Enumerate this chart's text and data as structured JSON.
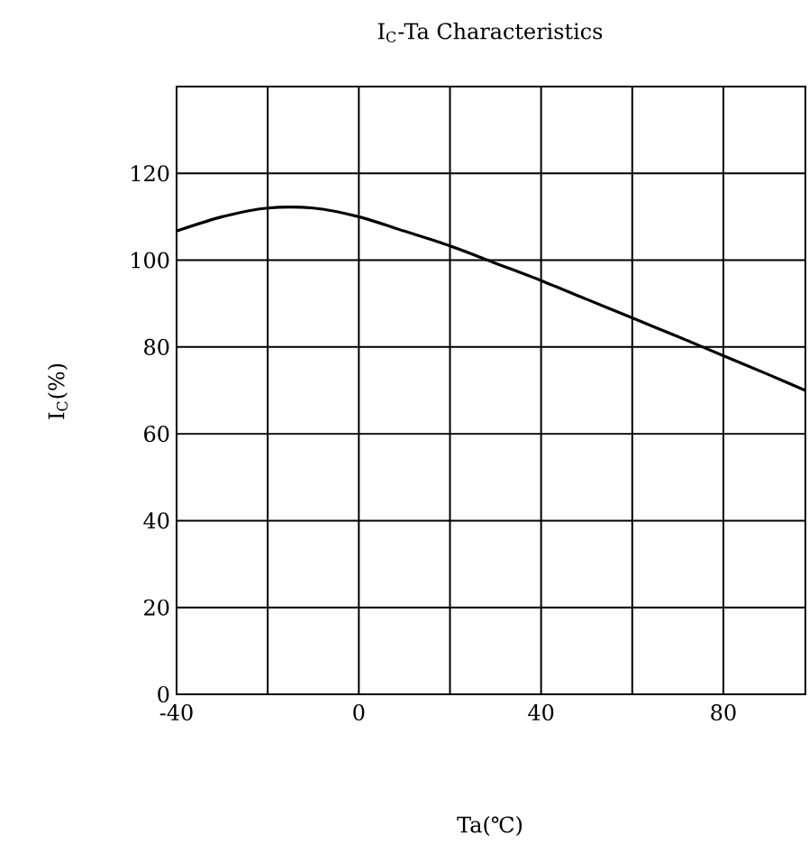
{
  "chart_data": {
    "type": "line",
    "title": "I$_{C}$-Ta Characteristics",
    "xlabel": "Ta(℃)",
    "ylabel": "I$_{C}$(%)",
    "x": [
      -40,
      -30,
      -20,
      -10,
      0,
      10,
      20,
      30,
      40,
      50,
      60,
      70,
      80,
      90,
      98
    ],
    "series": [
      {
        "color": "#000000",
        "values": [
          106.7,
          110,
          112,
          112,
          110,
          106.7,
          103.3,
          99.3,
          95.3,
          91,
          86.7,
          82.4,
          78,
          73.6,
          70
        ]
      }
    ],
    "xlim": [
      -40,
      98
    ],
    "ylim": [
      0,
      140
    ],
    "xticks": [
      -40,
      {
        "value": -20,
        "label": null
      },
      0,
      {
        "value": 20,
        "label": null
      },
      40,
      {
        "value": 60,
        "label": null
      },
      80
    ],
    "yticks": [
      0,
      20,
      40,
      60,
      80,
      100,
      120,
      {
        "value": 140,
        "label": null
      }
    ],
    "grid": true,
    "marker": "none",
    "line_style": "solid"
  }
}
